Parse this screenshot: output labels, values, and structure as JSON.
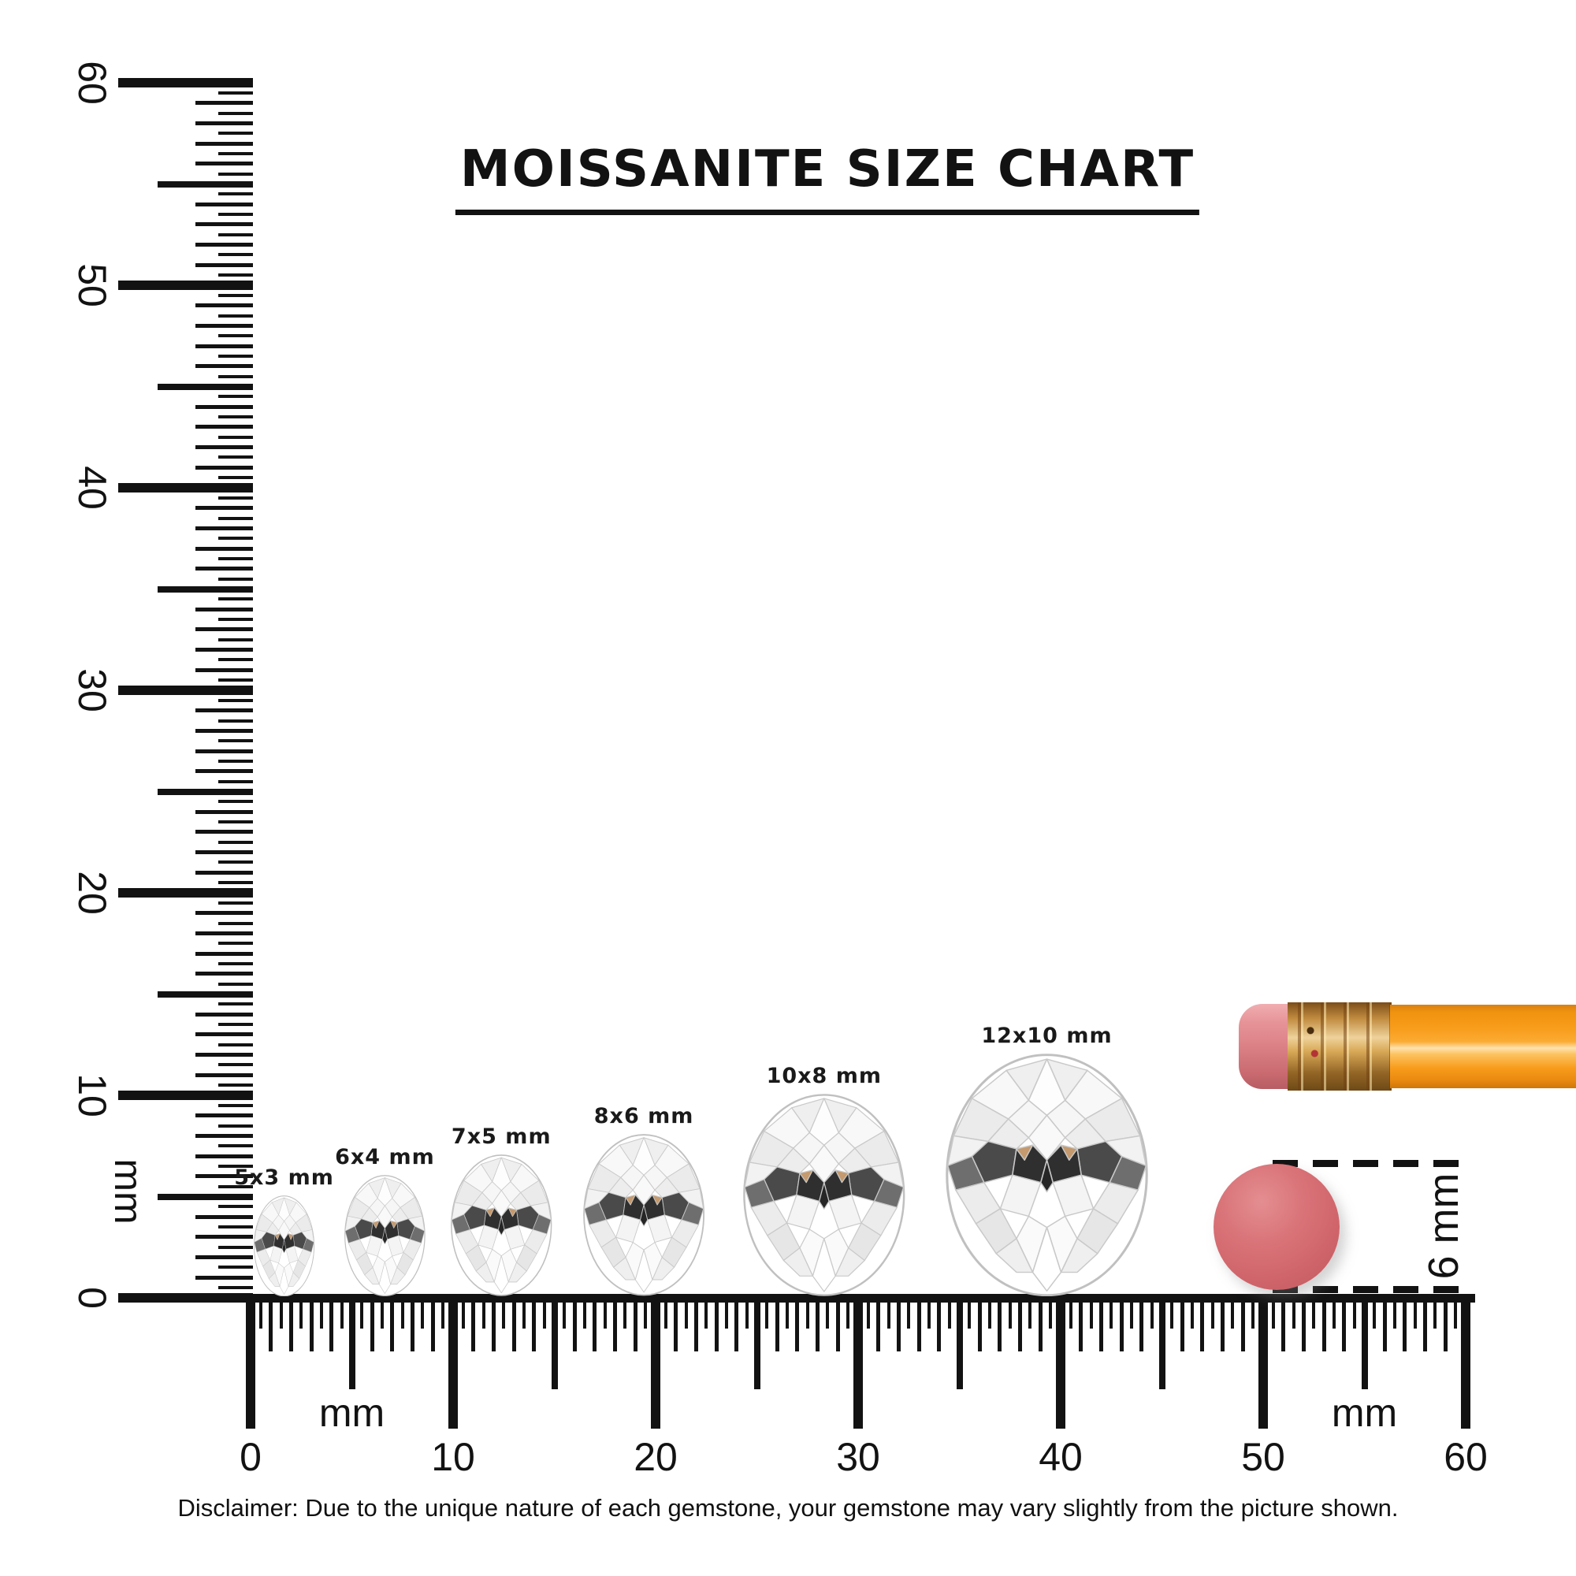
{
  "title": "MOISSANITE SIZE CHART",
  "vertical_ruler": {
    "unit": "mm",
    "numbers": [
      "0",
      "10",
      "20",
      "30",
      "40",
      "50",
      "60"
    ]
  },
  "horizontal_ruler": {
    "unit_left": "mm",
    "unit_right": "mm",
    "numbers": [
      "0",
      "10",
      "20",
      "30",
      "40",
      "50",
      "60"
    ]
  },
  "gems": [
    {
      "label": "5x3 mm",
      "width_mm": 3,
      "height_mm": 5
    },
    {
      "label": "6x4 mm",
      "width_mm": 4,
      "height_mm": 6
    },
    {
      "label": "7x5 mm",
      "width_mm": 5,
      "height_mm": 7
    },
    {
      "label": "8x6 mm",
      "width_mm": 6,
      "height_mm": 8
    },
    {
      "label": "10x8 mm",
      "width_mm": 8,
      "height_mm": 10
    },
    {
      "label": "12x10 mm",
      "width_mm": 10,
      "height_mm": 12
    }
  ],
  "eraser": {
    "label": "6 mm",
    "diameter_mm": 6,
    "color": "#d0666c"
  },
  "pencil": {
    "body_color": "#f89c1b",
    "ferrule_color": "#c08a3e",
    "tip_color": "#db8186"
  },
  "ink_color": "#121212",
  "disclaimer": "Disclaimer: Due to the unique nature of each gemstone, your gemstone may vary slightly from the picture shown."
}
